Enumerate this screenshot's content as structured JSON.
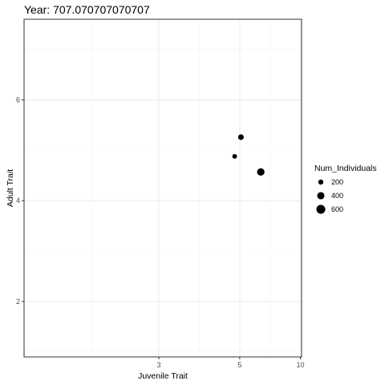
{
  "chart_data": {
    "type": "scatter",
    "title": "Year: 707.070707070707",
    "xlabel": "Juvenile Trait",
    "ylabel": "Adult Trait",
    "x_scale": "reciprocal",
    "xlim": [
      1.8,
      10.2
    ],
    "ylim": [
      0.9,
      7.6
    ],
    "x_ticks": [
      3,
      5,
      10
    ],
    "y_ticks": [
      2,
      4,
      6
    ],
    "grid": true,
    "points": [
      {
        "x": 4.8,
        "y": 4.88,
        "size": 170
      },
      {
        "x": 5.05,
        "y": 5.26,
        "size": 240
      },
      {
        "x": 6.05,
        "y": 4.57,
        "size": 420
      }
    ],
    "point_color": "#000000",
    "legend": {
      "title": "Num_Individuals",
      "placement": "right",
      "entries": [
        {
          "label": "200",
          "size": 200
        },
        {
          "label": "400",
          "size": 400
        },
        {
          "label": "600",
          "size": 600
        }
      ]
    }
  }
}
